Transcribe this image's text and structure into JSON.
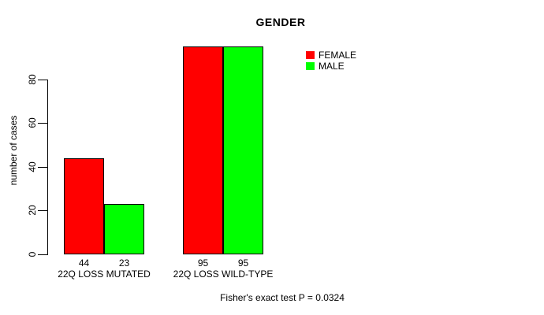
{
  "chart_data": {
    "type": "bar",
    "title": "GENDER",
    "ylabel": "number of cases",
    "xlabel": "",
    "yticks": [
      0,
      20,
      40,
      60,
      80
    ],
    "ylim": [
      0,
      95
    ],
    "grid": false,
    "background_color": "#ffffff",
    "axis_color": "#000000",
    "bar_border_color": "#000000",
    "categories": [
      "22Q LOSS MUTATED",
      "22Q LOSS WILD-TYPE"
    ],
    "series": [
      {
        "name": "FEMALE",
        "color": "#ff0000",
        "values": [
          44,
          95
        ]
      },
      {
        "name": "MALE",
        "color": "#00ff00",
        "values": [
          23,
          95
        ]
      }
    ],
    "bar_value_labels": [
      [
        "44",
        "23"
      ],
      [
        "95",
        "95"
      ]
    ],
    "legend_position": "top-right",
    "annotation": "Fisher's exact test P = 0.0324"
  }
}
